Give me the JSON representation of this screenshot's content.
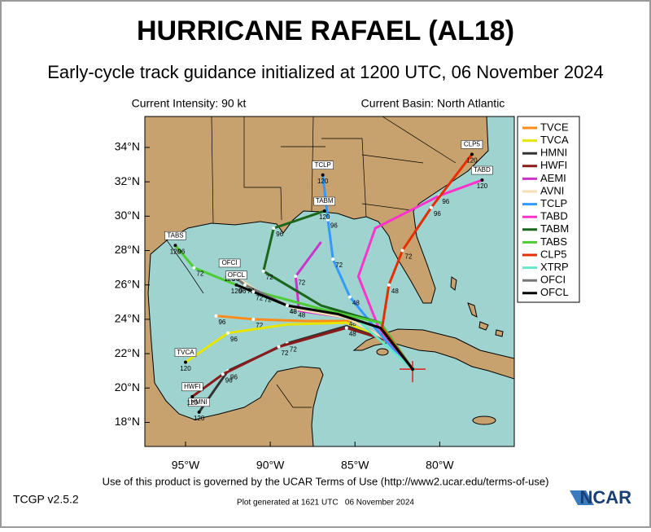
{
  "title": "HURRICANE RAFAEL (AL18)",
  "subtitle": "Early-cycle track guidance initialized at 1200 UTC, 06 November 2024",
  "current_intensity": "Current Intensity: 90 kt",
  "current_basin": "Current Basin: North Atlantic",
  "map": {
    "lonlim": [
      -97.4,
      -75.6
    ],
    "latlim": [
      16.6,
      35.8
    ],
    "lonticks": [
      {
        "value": -95,
        "label": "95°W"
      },
      {
        "value": -90,
        "label": "90°W"
      },
      {
        "value": -85,
        "label": "85°W"
      },
      {
        "value": -80,
        "label": "80°W"
      }
    ],
    "latticks": [
      {
        "value": 18,
        "label": "18°N"
      },
      {
        "value": 20,
        "label": "20°N"
      },
      {
        "value": 22,
        "label": "22°N"
      },
      {
        "value": 24,
        "label": "24°N"
      },
      {
        "value": 26,
        "label": "26°N"
      },
      {
        "value": 28,
        "label": "28°N"
      },
      {
        "value": 30,
        "label": "30°N"
      },
      {
        "value": 32,
        "label": "32°N"
      },
      {
        "value": 34,
        "label": "34°N"
      }
    ],
    "current_position": {
      "lon": -81.6,
      "lat": 21.1
    },
    "models": [
      {
        "name": "TVCE",
        "color": "#ff8c1a",
        "lons": [
          -81.6,
          -83.2,
          -85,
          -88,
          -91,
          -93.2
        ],
        "lats": [
          21.1,
          22.8,
          23.9,
          23.9,
          24,
          24.2
        ],
        "hour_labels": [
          null,
          null,
          null,
          null,
          72,
          96
        ]
      },
      {
        "name": "TVCA",
        "color": "#e6e600",
        "lons": [
          -81.6,
          -83.2,
          -85.5,
          -89,
          -92.5,
          -95
        ],
        "lats": [
          21.1,
          22.8,
          23.8,
          23.7,
          23.2,
          21.5
        ],
        "hour_labels": [
          null,
          null,
          null,
          null,
          96,
          null
        ],
        "final_hour": 120
      },
      {
        "name": "HMNI",
        "color": "#333333",
        "lons": [
          -81.6,
          -83.2,
          -85.5,
          -89,
          -92.5,
          -94.2
        ],
        "lats": [
          21.1,
          22.8,
          23.6,
          22.6,
          21,
          18.6
        ],
        "hour_labels": [
          null,
          null,
          null,
          72,
          96,
          null
        ],
        "final_hour": 120
      },
      {
        "name": "HWFI",
        "color": "#8b1a1a",
        "lons": [
          -81.6,
          -83.2,
          -85.5,
          -89.5,
          -92.8,
          -94.6
        ],
        "lats": [
          21.1,
          22.8,
          23.5,
          22.4,
          20.8,
          19.5
        ],
        "hour_labels": [
          null,
          null,
          48,
          72,
          96,
          null
        ],
        "final_hour": 120
      },
      {
        "name": "AEMI",
        "color": "#cc33cc",
        "lons": [
          -81.6,
          -83.3,
          -85.5,
          -88.3,
          -88.5,
          -87
        ],
        "lats": [
          21.1,
          22.9,
          24.1,
          24.5,
          26.5,
          28.5
        ],
        "hour_labels": [
          null,
          null,
          48,
          null,
          72,
          null
        ]
      },
      {
        "name": "AVNI",
        "color": "#f5deb3",
        "lons": [
          -81.6,
          -83.3,
          -85.5,
          -88.5,
          -90.5,
          -91.8
        ],
        "lats": [
          21.1,
          22.9,
          24.1,
          24.6,
          25.5,
          26.3
        ],
        "hour_labels": [
          null,
          null,
          null,
          48,
          72,
          null
        ]
      },
      {
        "name": "TCLP",
        "color": "#3399ff",
        "lons": [
          -81.6,
          -83.4,
          -85.3,
          -86.3,
          -86.6,
          -86.9
        ],
        "lats": [
          21.1,
          23,
          25.3,
          27.5,
          29.8,
          32.4
        ],
        "hour_labels": [
          null,
          null,
          48,
          72,
          96,
          null
        ],
        "final_hour": 120
      },
      {
        "name": "TABD",
        "color": "#ff33cc",
        "lons": [
          -81.6,
          -83.6,
          -84.8,
          -83.8,
          -80,
          -77.5
        ],
        "lats": [
          21.1,
          23.5,
          26.5,
          29.3,
          31.2,
          32.1
        ],
        "hour_labels": [
          null,
          null,
          null,
          null,
          96,
          null
        ],
        "final_hour": 120
      },
      {
        "name": "TABM",
        "color": "#1a661a",
        "lons": [
          -81.6,
          -83.5,
          -87,
          -90.4,
          -89.8,
          -86.8
        ],
        "lats": [
          21.1,
          23.8,
          24.8,
          26.8,
          29.3,
          30.3
        ],
        "hour_labels": [
          null,
          null,
          null,
          72,
          96,
          null
        ],
        "final_hour": 120
      },
      {
        "name": "TABS",
        "color": "#4dcc33",
        "lons": [
          -81.6,
          -83.5,
          -87,
          -91.5,
          -94.5,
          -95.6
        ],
        "lats": [
          21.1,
          23.8,
          24.6,
          25.8,
          27,
          28.3
        ],
        "hour_labels": [
          null,
          null,
          null,
          null,
          72,
          96
        ],
        "final_hour": 120
      },
      {
        "name": "CLP5",
        "color": "#e62e00",
        "lons": [
          -81.6,
          -83.4,
          -83,
          -82.2,
          -80.5,
          -78.1
        ],
        "lats": [
          21.1,
          23.5,
          26,
          28,
          30.5,
          33.6
        ],
        "hour_labels": [
          null,
          null,
          48,
          72,
          96,
          null
        ],
        "final_hour": 120
      },
      {
        "name": "XTRP",
        "color": "#66e6cc",
        "lons": [
          -81.6,
          -83.2,
          -84.8
        ],
        "lats": [
          21.1,
          22.5,
          23.9
        ],
        "hour_labels": [
          null,
          null,
          null
        ]
      },
      {
        "name": "OFCI",
        "color": "#777777",
        "lons": [
          -81.6,
          -83.5,
          -86,
          -89,
          -91.5,
          -92.4
        ],
        "lats": [
          21.1,
          23.5,
          24.3,
          24.8,
          26,
          26.7
        ],
        "hour_labels": [
          null,
          null,
          null,
          48,
          72,
          96
        ],
        "final_hour": 120
      },
      {
        "name": "OFCL",
        "color": "#000000",
        "lons": [
          -81.6,
          -83.5,
          -86,
          -89,
          -91,
          -92
        ],
        "lats": [
          21.1,
          23.5,
          24.3,
          24.8,
          25.6,
          26
        ],
        "hour_labels": [
          null,
          null,
          null,
          48,
          72,
          96
        ],
        "final_hour": 120
      }
    ]
  },
  "footer": {
    "terms": "Use of this product is governed by the UCAR Terms of Use (http://www2.ucar.edu/terms-of-use)",
    "version": "TCGP v2.5.2",
    "generated": "Plot generated at 1621 UTC   06 November 2024",
    "logo": "NCAR"
  }
}
